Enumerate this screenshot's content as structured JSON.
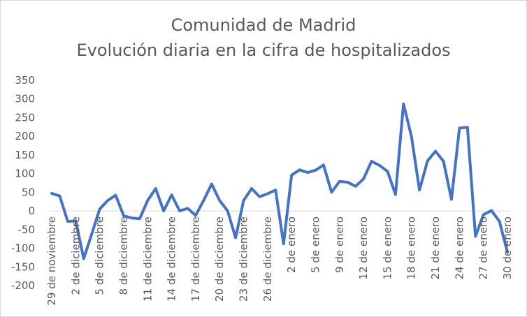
{
  "chart_data": {
    "type": "line",
    "title_line1": "Comunidad de Madrid",
    "title_line2": "Evolución diaria en la cifra de hospitalizados",
    "xlabel": "",
    "ylabel": "",
    "ylim": [
      -200,
      350
    ],
    "yticks": [
      350,
      300,
      250,
      200,
      150,
      100,
      50,
      0,
      -50,
      -100,
      -150,
      -200
    ],
    "grid": false,
    "legend": "none",
    "line_color": "#4472C4",
    "x_tick_labels": [
      {
        "index": 0,
        "label": "29 de noviembre"
      },
      {
        "index": 3,
        "label": "2 de diciembre"
      },
      {
        "index": 6,
        "label": "5 de diciembre"
      },
      {
        "index": 9,
        "label": "8 de diciembre"
      },
      {
        "index": 12,
        "label": "11 de diciembre"
      },
      {
        "index": 15,
        "label": "14 de diciembre"
      },
      {
        "index": 18,
        "label": "17 de diciembre"
      },
      {
        "index": 21,
        "label": "20 de diciembre"
      },
      {
        "index": 24,
        "label": "23 de diciembre"
      },
      {
        "index": 27,
        "label": "26 de diciembre"
      },
      {
        "index": 30,
        "label": "2 de enero"
      },
      {
        "index": 33,
        "label": "5 de enero"
      },
      {
        "index": 36,
        "label": "9 de enero"
      },
      {
        "index": 39,
        "label": "12 de enero"
      },
      {
        "index": 42,
        "label": "15 de enero"
      },
      {
        "index": 45,
        "label": "18 de enero"
      },
      {
        "index": 48,
        "label": "21 de enero"
      },
      {
        "index": 51,
        "label": "24 de enero"
      },
      {
        "index": 54,
        "label": "27 de enero"
      },
      {
        "index": 57,
        "label": "30 de enero"
      }
    ],
    "series": [
      {
        "values": [
          47,
          40,
          -28,
          -27,
          -128,
          -62,
          5,
          28,
          42,
          -13,
          -19,
          -21,
          28,
          60,
          0,
          43,
          0,
          7,
          -12,
          28,
          72,
          28,
          0,
          -72,
          28,
          60,
          38,
          46,
          56,
          -88,
          96,
          110,
          103,
          109,
          123,
          50,
          79,
          77,
          66,
          86,
          133,
          122,
          106,
          44,
          287,
          199,
          56,
          134,
          160,
          133,
          31,
          222,
          224,
          -68,
          -10,
          1,
          -28,
          -110
        ]
      }
    ]
  }
}
